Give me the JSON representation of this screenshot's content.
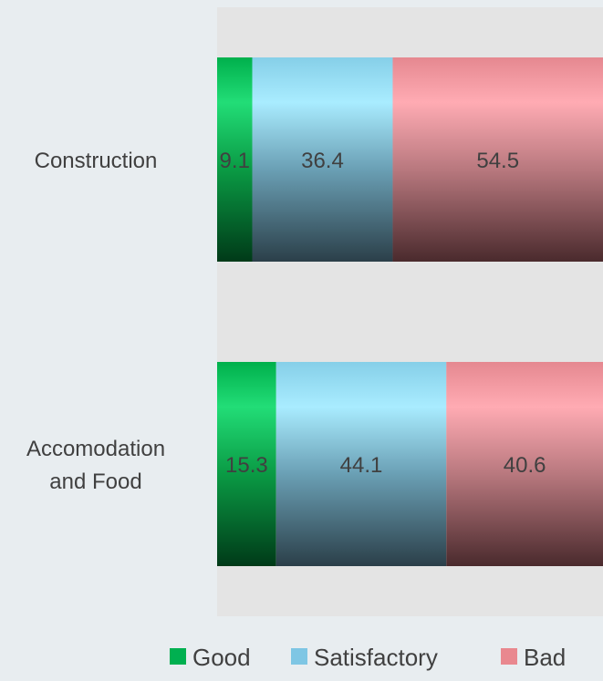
{
  "chart_data": {
    "type": "bar",
    "orientation": "horizontal",
    "stacked": true,
    "categories": [
      "Construction",
      "Accomodation and Food"
    ],
    "category_lines": [
      [
        "Construction"
      ],
      [
        "Accomodation",
        "and Food"
      ]
    ],
    "series": [
      {
        "name": "Good",
        "values": [
          9.1,
          15.3
        ],
        "color": "#00b050"
      },
      {
        "name": "Satisfactory",
        "values": [
          36.4,
          44.1
        ],
        "color": "#7ec6e4"
      },
      {
        "name": "Bad",
        "values": [
          54.5,
          40.6
        ],
        "color": "#e9888f"
      }
    ],
    "xlim": [
      0,
      100
    ],
    "legend_position": "bottom"
  }
}
